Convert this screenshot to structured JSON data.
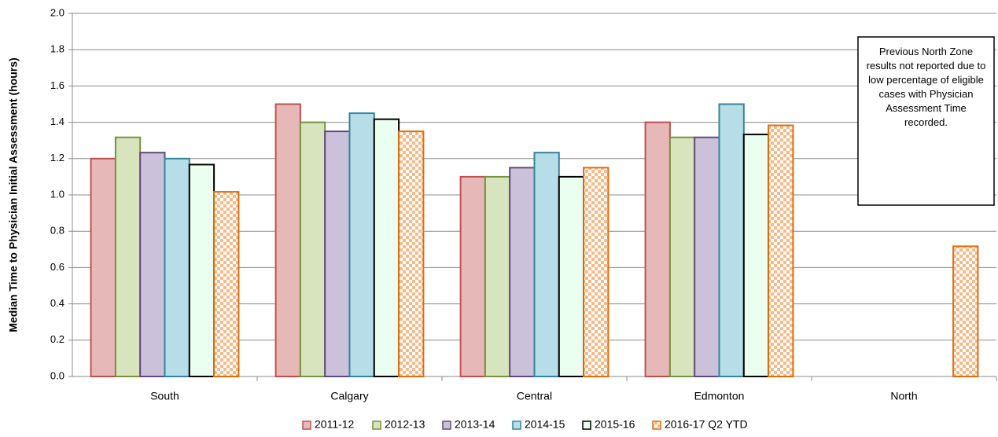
{
  "chart_data": {
    "type": "bar",
    "y_label": "Median Time to Physician Initial Assessment (hours)",
    "categories": [
      "South",
      "Calgary",
      "Central",
      "Edmonton",
      "North"
    ],
    "series": [
      {
        "name": "2011-12",
        "color": "#e6b9b8",
        "stroke": "#c0504d",
        "values": [
          1.2,
          1.5,
          1.1,
          1.4,
          null
        ]
      },
      {
        "name": "2012-13",
        "color": "#d7e4bd",
        "stroke": "#77933c",
        "values": [
          1.317,
          1.4,
          1.1,
          1.317,
          null
        ]
      },
      {
        "name": "2013-14",
        "color": "#ccc1da",
        "stroke": "#604a7b",
        "values": [
          1.233,
          1.35,
          1.15,
          1.317,
          null
        ]
      },
      {
        "name": "2014-15",
        "color": "#b7dee8",
        "stroke": "#31859c",
        "values": [
          1.2,
          1.45,
          1.233,
          1.5,
          null
        ]
      },
      {
        "name": "2015-16",
        "color": "#eafff0",
        "stroke": "#000000",
        "values": [
          1.167,
          1.417,
          1.1,
          1.333,
          null
        ]
      },
      {
        "name": "2016-17 Q2 YTD",
        "color": "#f9b987",
        "stroke": "#e46c0a",
        "pattern": "checker",
        "values": [
          1.017,
          1.35,
          1.15,
          1.383,
          0.717
        ]
      }
    ],
    "ylim": [
      0,
      2
    ],
    "yticks": [
      {
        "value": 0,
        "label": "0.0"
      },
      0.2,
      0.4,
      0.6,
      0.8,
      {
        "value": 1,
        "label": "1.0"
      },
      1.2,
      1.4,
      1.6,
      1.8,
      {
        "value": 2,
        "label": "2.0"
      }
    ],
    "grid": true,
    "annotation": "Previous North Zone results not reported due to low percentage of eligible cases with Physician Assessment Time recorded."
  }
}
